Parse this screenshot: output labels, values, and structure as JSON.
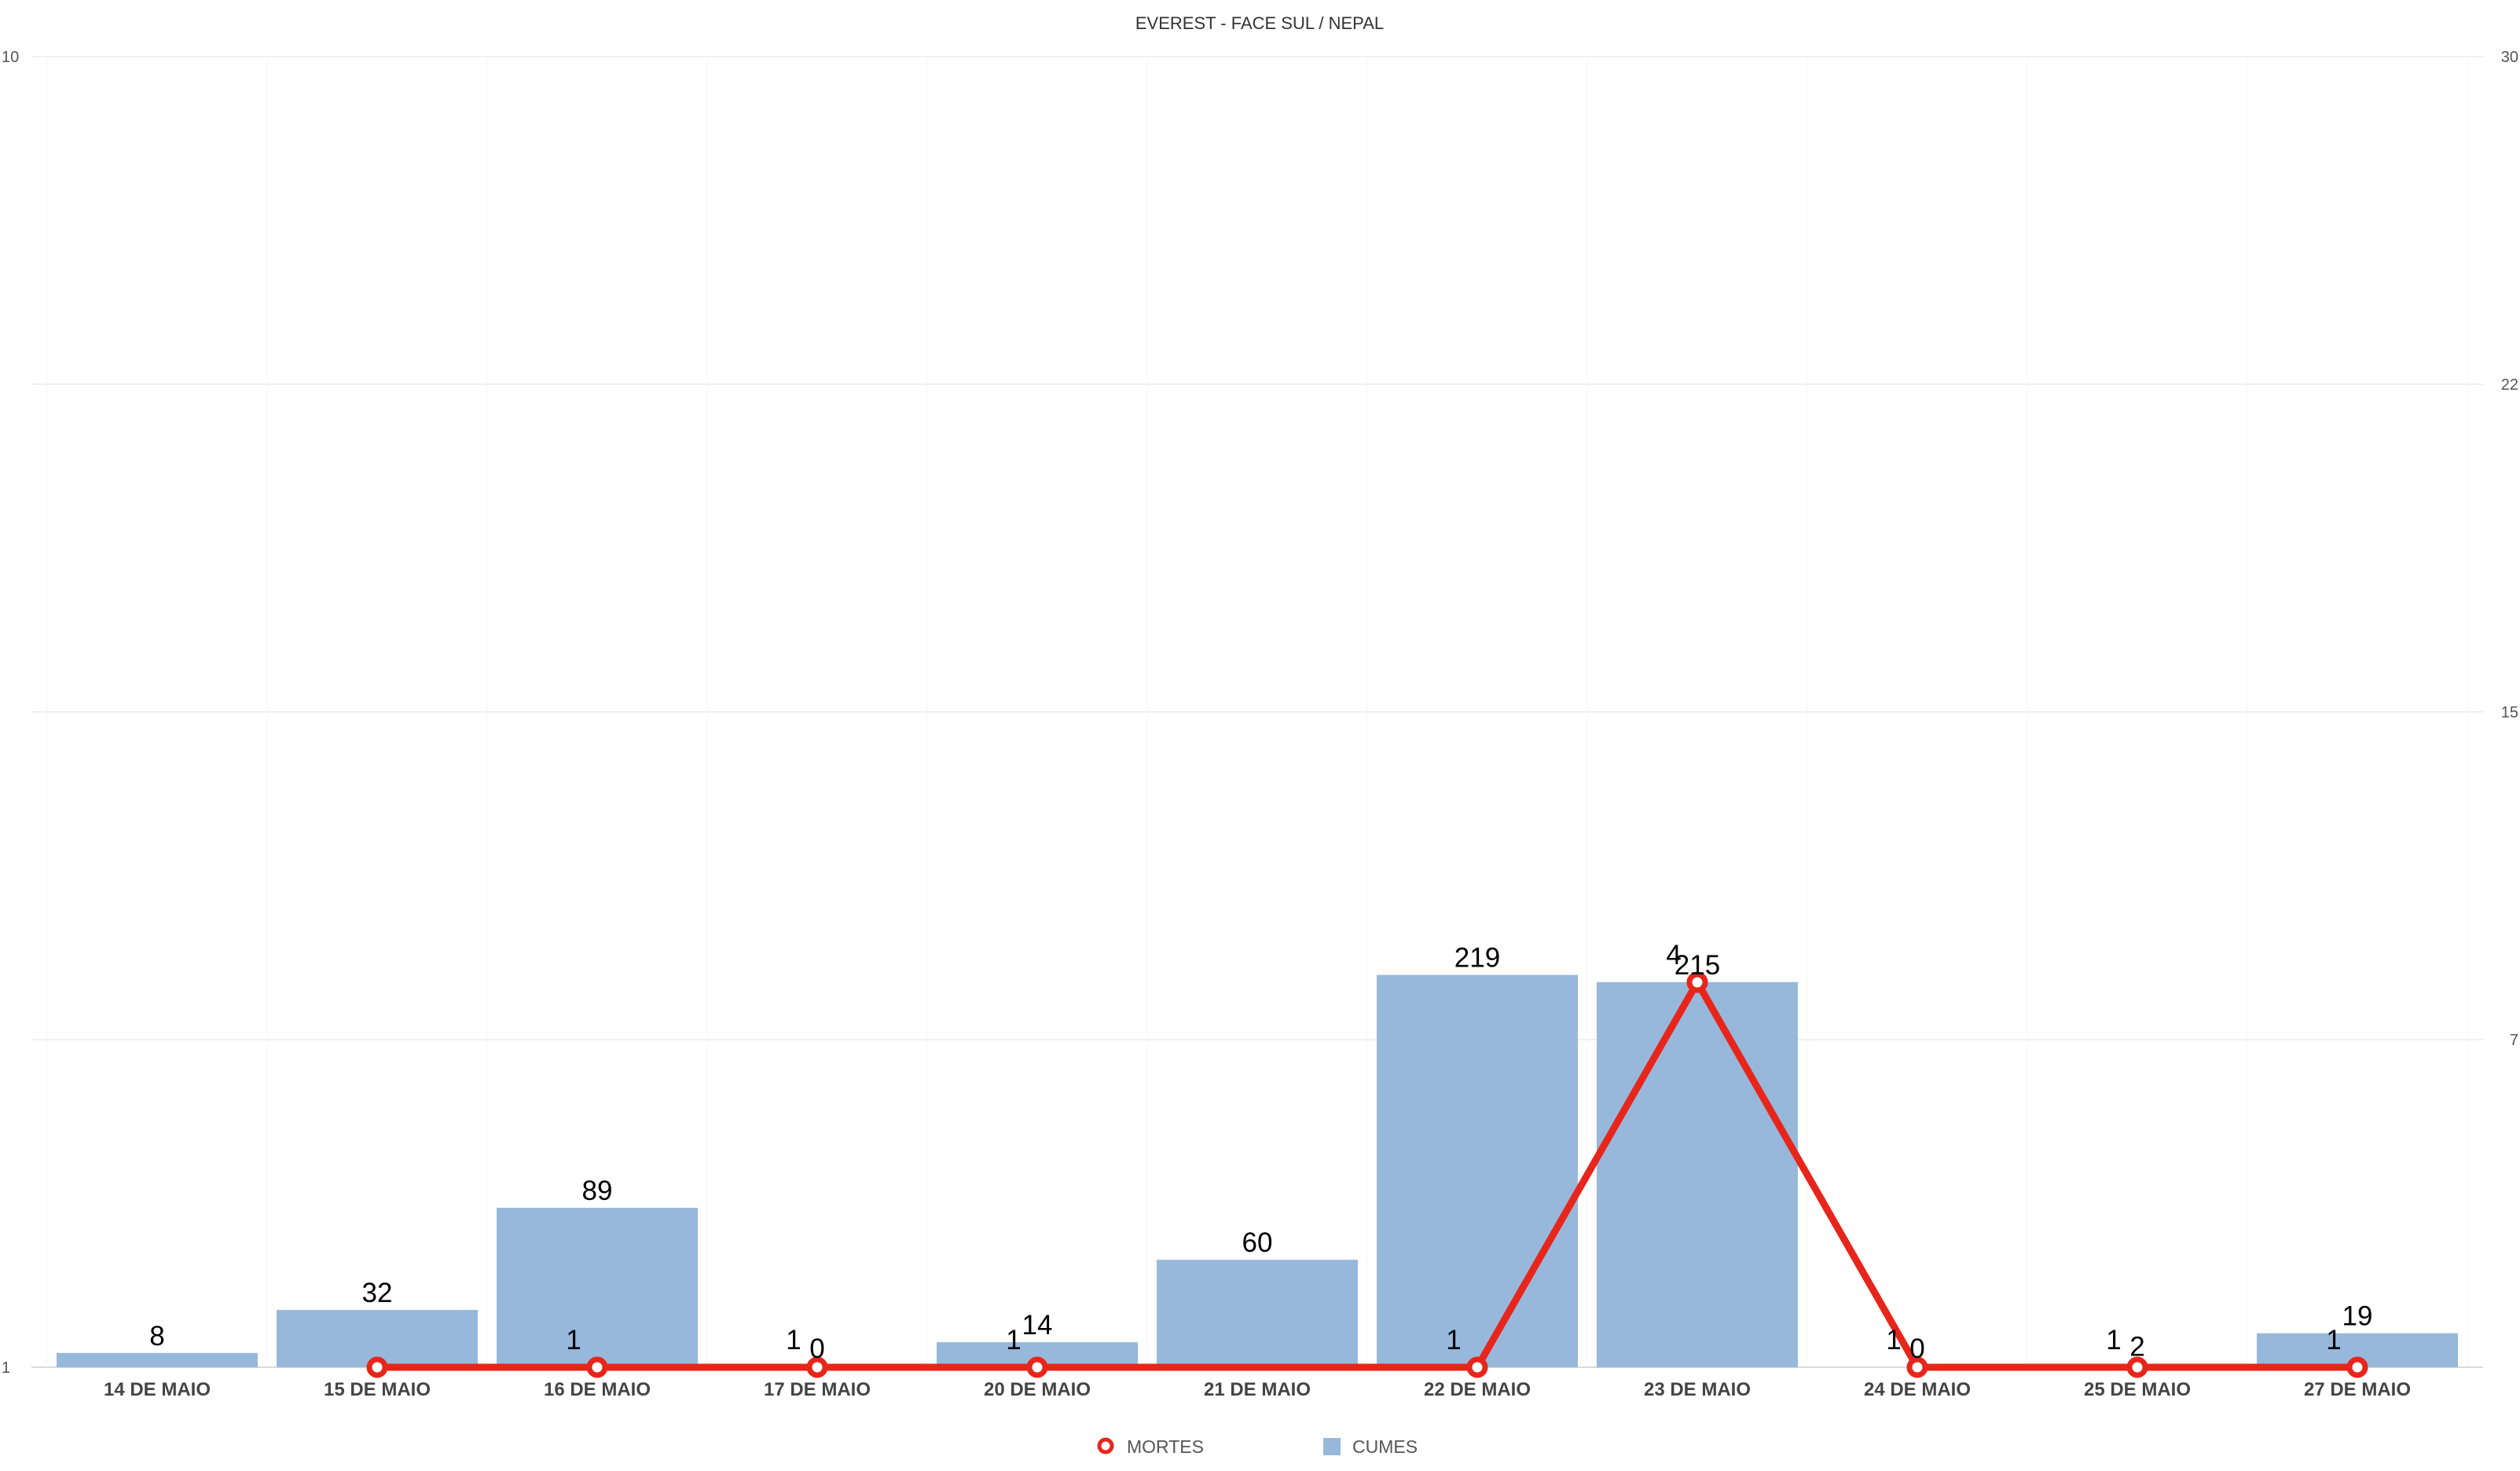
{
  "chart_data": {
    "type": "bar",
    "title": "EVEREST - FACE SUL / NEPAL",
    "categories": [
      "14 DE MAIO",
      "15 DE MAIO",
      "16 DE MAIO",
      "17 DE MAIO",
      "20 DE MAIO",
      "21 DE MAIO",
      "22 DE MAIO",
      "23 DE MAIO",
      "24 DE MAIO",
      "25 DE MAIO",
      "27 DE MAIO"
    ],
    "left_axis_ticks": [
      "1",
      "10"
    ],
    "right_axis_ticks": [
      "7",
      "15",
      "22",
      "30"
    ],
    "grid": true,
    "legend_position": "bottom-center",
    "series": [
      {
        "name": "CUMES",
        "type": "bar",
        "color": "#97b8db",
        "values": [
          8,
          32,
          89,
          null,
          14,
          60,
          219,
          215,
          null,
          2,
          19
        ],
        "labels": [
          "8",
          "32",
          "89",
          "0",
          "14",
          "60",
          "219",
          "215",
          "0",
          "2",
          "19"
        ]
      },
      {
        "name": "MORTES",
        "type": "line",
        "color": "#e8251a",
        "values": [
          null,
          1,
          1,
          1,
          1,
          null,
          1,
          4,
          1,
          1,
          1
        ],
        "labels": [
          "",
          "",
          "1",
          "1",
          "1",
          "",
          "1",
          "4",
          "1",
          "1",
          "1"
        ]
      }
    ]
  }
}
